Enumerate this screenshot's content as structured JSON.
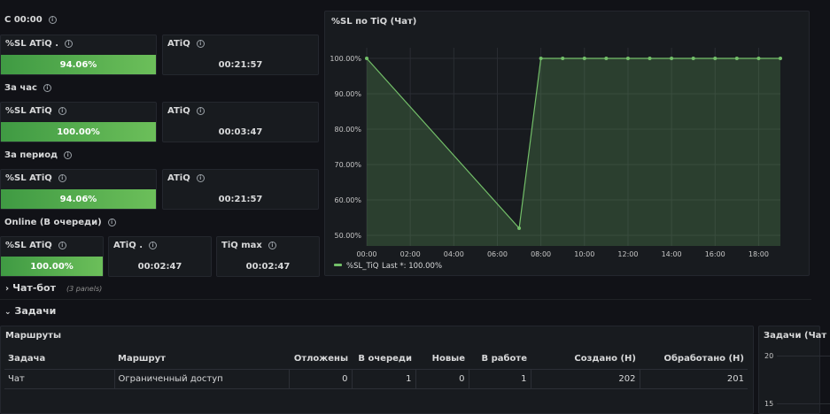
{
  "sections": {
    "s1": "С 00:00",
    "s2": "За час",
    "s3": "За период",
    "s4": "Online (В очереди)"
  },
  "stats": {
    "p1": {
      "sl_title": "%SL ATiQ .",
      "sl_value": "94.06%",
      "atiq_title": "ATiQ",
      "atiq_value": "00:21:57"
    },
    "p2": {
      "sl_title": "%SL ATiQ",
      "sl_value": "100.00%",
      "atiq_title": "ATiQ",
      "atiq_value": "00:03:47"
    },
    "p3": {
      "sl_title": "%SL ATiQ",
      "sl_value": "94.06%",
      "atiq_title": "ATiQ",
      "atiq_value": "00:21:57"
    },
    "p4": {
      "sl_title": "%SL ATiQ",
      "sl_value": "100.00%",
      "atiq_title": "ATiQ .",
      "atiq_value": "00:02:47",
      "max_title": "TiQ max",
      "max_value": "00:02:47"
    }
  },
  "chart_data": {
    "type": "area",
    "title": "%SL по TiQ (Чат)",
    "x_ticks": [
      "00:00",
      "02:00",
      "04:00",
      "06:00",
      "08:00",
      "10:00",
      "12:00",
      "14:00",
      "16:00",
      "18:00"
    ],
    "y_ticks": [
      "50.00%",
      "60.00%",
      "70.00%",
      "80.00%",
      "90.00%",
      "100.00%"
    ],
    "ylim": [
      50,
      100
    ],
    "xlim_hours": [
      0,
      19
    ],
    "series": [
      {
        "name": "%SL_TiQ",
        "color": "#73bf69",
        "x_hours": [
          0,
          7,
          8,
          9,
          10,
          11,
          12,
          13,
          14,
          15,
          16,
          17,
          18,
          19
        ],
        "values": [
          100,
          52,
          100,
          100,
          100,
          100,
          100,
          100,
          100,
          100,
          100,
          100,
          100,
          100
        ]
      }
    ],
    "legend": {
      "series": "%SL_TiQ",
      "stat": "Last *: 100.00%"
    },
    "grid": true
  },
  "rows": {
    "chatbot": {
      "label": "Чат-бот",
      "count": "(3 panels)"
    },
    "tasks": {
      "label": "Задачи"
    }
  },
  "routes": {
    "title": "Маршруты",
    "headers": [
      "Задача",
      "Маршрут",
      "Отложены",
      "В очереди",
      "Новые",
      "В работе",
      "Создано (Н)",
      "Обработано (Н)"
    ],
    "row": [
      "Чат",
      "Ограниченный доступ",
      "0",
      "1",
      "0",
      "1",
      "202",
      "201"
    ]
  },
  "side_panel": {
    "title": "Задачи (Чат",
    "y1": "20",
    "y2": "15"
  }
}
